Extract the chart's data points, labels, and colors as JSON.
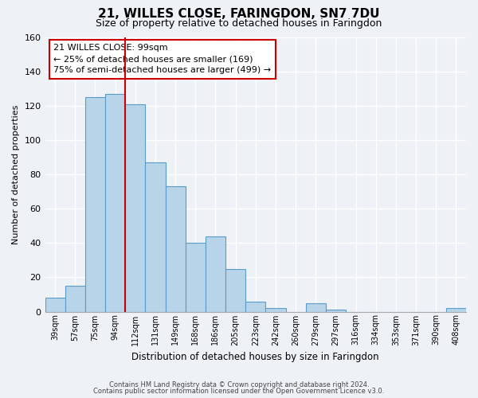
{
  "title": "21, WILLES CLOSE, FARINGDON, SN7 7DU",
  "subtitle": "Size of property relative to detached houses in Faringdon",
  "xlabel": "Distribution of detached houses by size in Faringdon",
  "ylabel": "Number of detached properties",
  "categories": [
    "39sqm",
    "57sqm",
    "75sqm",
    "94sqm",
    "112sqm",
    "131sqm",
    "149sqm",
    "168sqm",
    "186sqm",
    "205sqm",
    "223sqm",
    "242sqm",
    "260sqm",
    "279sqm",
    "297sqm",
    "316sqm",
    "334sqm",
    "353sqm",
    "371sqm",
    "390sqm",
    "408sqm"
  ],
  "values": [
    8,
    15,
    125,
    127,
    121,
    87,
    73,
    40,
    44,
    25,
    6,
    2,
    0,
    5,
    1,
    0,
    0,
    0,
    0,
    0,
    2
  ],
  "bar_color": "#b8d4e8",
  "bar_edge_color": "#5b9bc8",
  "vline_x_index": 3.5,
  "vline_color": "#cc0000",
  "annotation_title": "21 WILLES CLOSE: 99sqm",
  "annotation_line1": "← 25% of detached houses are smaller (169)",
  "annotation_line2": "75% of semi-detached houses are larger (499) →",
  "annotation_box_color": "#ffffff",
  "annotation_box_edge_color": "#cc0000",
  "ylim": [
    0,
    160
  ],
  "yticks": [
    0,
    20,
    40,
    60,
    80,
    100,
    120,
    140,
    160
  ],
  "footnote1": "Contains HM Land Registry data © Crown copyright and database right 2024.",
  "footnote2": "Contains public sector information licensed under the Open Government Licence v3.0.",
  "background_color": "#eef2f7",
  "grid_color": "#ffffff",
  "title_fontsize": 11,
  "subtitle_fontsize": 9
}
